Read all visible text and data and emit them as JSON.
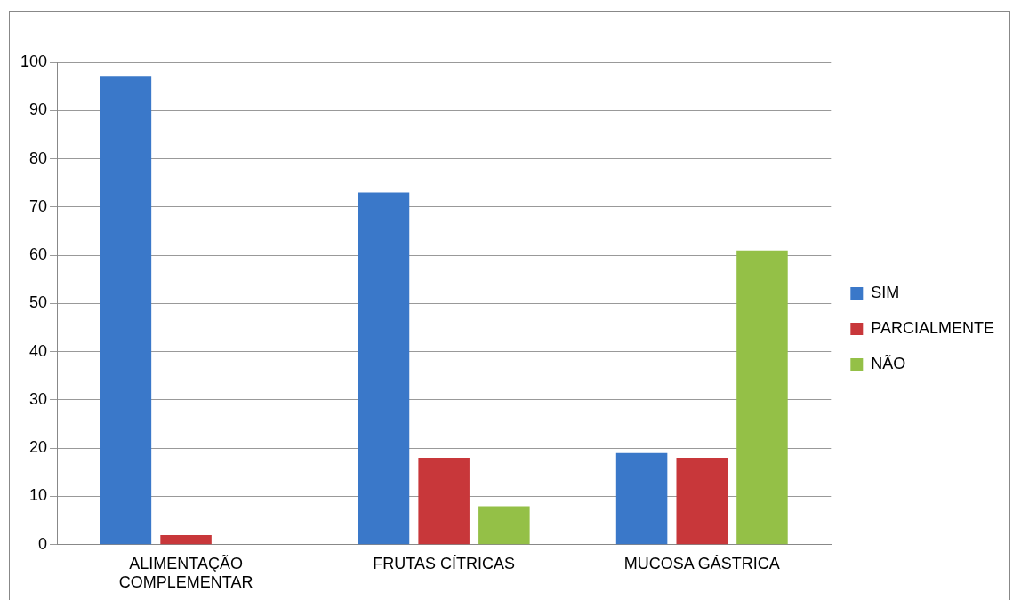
{
  "chart_data": {
    "type": "bar",
    "categories": [
      "ALIMENTAÇÃO COMPLEMENTAR",
      "FRUTAS CÍTRICAS",
      "MUCOSA GÁSTRICA"
    ],
    "series": [
      {
        "name": "SIM",
        "color": "#3a78c9",
        "values": [
          97,
          73,
          19
        ]
      },
      {
        "name": "PARCIALMENTE",
        "color": "#c8373a",
        "values": [
          2,
          18,
          18
        ]
      },
      {
        "name": "NÃO",
        "color": "#94c047",
        "values": [
          0,
          8,
          61
        ]
      }
    ],
    "ylim": [
      0,
      100
    ],
    "yticks": [
      0,
      10,
      20,
      30,
      40,
      50,
      60,
      70,
      80,
      90,
      100
    ],
    "grid": "y",
    "legend": "right"
  }
}
